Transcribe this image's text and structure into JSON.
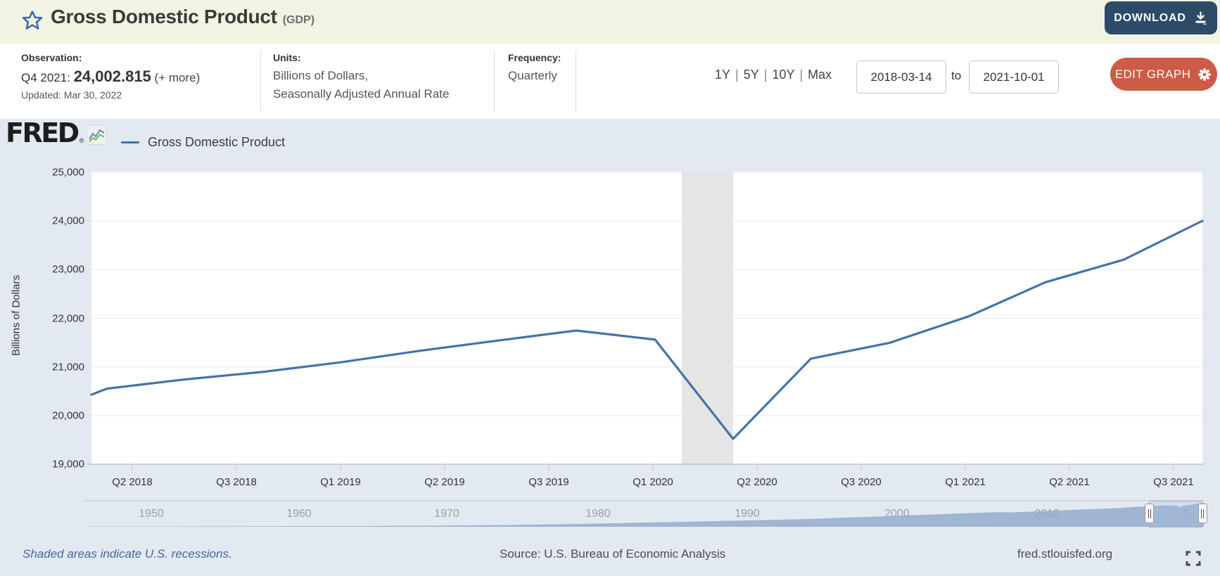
{
  "header": {
    "title": "Gross Domestic Product",
    "title_suffix": "(GDP)",
    "download_label": "DOWNLOAD"
  },
  "toolbar": {
    "observation": {
      "label": "Observation:",
      "period": "Q4 2021:",
      "value": "24,002.815",
      "more": "(+ more)",
      "updated": "Updated: Mar 30, 2022"
    },
    "units": {
      "label": "Units:",
      "line1": "Billions of Dollars,",
      "line2": "Seasonally Adjusted Annual Rate"
    },
    "frequency": {
      "label": "Frequency:",
      "value": "Quarterly"
    },
    "ranges": [
      "1Y",
      "5Y",
      "10Y",
      "Max"
    ],
    "range_separator": "|",
    "date_from": "2018-03-14",
    "to_label": "to",
    "date_to": "2021-10-01",
    "edit_graph_label": "EDIT GRAPH"
  },
  "legend": {
    "brand": "FRED",
    "brand_reg": "®",
    "series_label": "Gross Domestic Product"
  },
  "chart_data": {
    "type": "line",
    "title": "Gross Domestic Product",
    "ylabel": "Billions of Dollars",
    "ylim": [
      19000,
      25000
    ],
    "yticks": [
      19000,
      20000,
      21000,
      22000,
      23000,
      24000,
      25000
    ],
    "x_range": [
      "2018-03-14",
      "2021-10-01"
    ],
    "xtick_labels": [
      "Q2 2018",
      "Q3 2018",
      "Q1 2019",
      "Q2 2019",
      "Q3 2019",
      "Q1 2020",
      "Q2 2020",
      "Q3 2020",
      "Q1 2021",
      "Q2 2021",
      "Q3 2021"
    ],
    "grid": true,
    "legend_position": "top-left",
    "series": [
      {
        "name": "Gross Domestic Product",
        "color": "#4573a7",
        "points": [
          [
            "2018-03-14",
            20430
          ],
          [
            "2018-04-01",
            20552.7
          ],
          [
            "2018-07-01",
            20742.7
          ],
          [
            "2018-10-01",
            20897.8
          ],
          [
            "2019-01-01",
            21098.8
          ],
          [
            "2019-04-01",
            21329.9
          ],
          [
            "2019-07-01",
            21540.3
          ],
          [
            "2019-10-01",
            21747.4
          ],
          [
            "2020-01-01",
            21561.1
          ],
          [
            "2020-04-01",
            19520.1
          ],
          [
            "2020-07-01",
            21170.3
          ],
          [
            "2020-10-01",
            21494.7
          ],
          [
            "2021-01-01",
            22038.2
          ],
          [
            "2021-04-01",
            22741.0
          ],
          [
            "2021-07-01",
            23202.3
          ],
          [
            "2021-10-01",
            24002.815
          ]
        ]
      }
    ],
    "recession_bands": [
      {
        "from": "2020-02-01",
        "to": "2020-04-01"
      }
    ],
    "colors": {
      "plot_background": "#ffffff",
      "page_background": "#e3e9f1",
      "gridline": "#e8e8e8",
      "axis_line": "#b0b0b0",
      "recession_band": "#e5e5e5"
    }
  },
  "timeline": {
    "year_labels": [
      "1950",
      "1960",
      "1970",
      "1980",
      "1990",
      "2000",
      "2010",
      "2..."
    ],
    "selection": {
      "from": "2018-03-14",
      "to": "2021-10-01"
    },
    "area_color": "#8ea7cb",
    "line_color": "#4c77a9",
    "area_points": [
      [
        1947,
        243
      ],
      [
        1950,
        300
      ],
      [
        1955,
        426
      ],
      [
        1960,
        542
      ],
      [
        1965,
        743
      ],
      [
        1970,
        1073
      ],
      [
        1975,
        1684
      ],
      [
        1980,
        2857
      ],
      [
        1985,
        4339
      ],
      [
        1990,
        5963
      ],
      [
        1995,
        7639
      ],
      [
        2000,
        10251
      ],
      [
        2005,
        13039
      ],
      [
        2008,
        14710
      ],
      [
        2009,
        14448
      ],
      [
        2010,
        14992
      ],
      [
        2012,
        16254
      ],
      [
        2014,
        17521
      ],
      [
        2016,
        18695
      ],
      [
        2018,
        20533
      ],
      [
        2019,
        21380
      ],
      [
        2020.0,
        21481
      ],
      [
        2020.25,
        19520
      ],
      [
        2020.5,
        21170
      ],
      [
        2020.75,
        21495
      ],
      [
        2021,
        22038
      ],
      [
        2021.25,
        22741
      ],
      [
        2021.5,
        23202
      ],
      [
        2021.83,
        24003
      ]
    ]
  },
  "footer": {
    "recession_note": "Shaded areas indicate U.S. recessions.",
    "source": "Source: U.S. Bureau of Economic Analysis",
    "site": "fred.stlouisfed.org"
  },
  "icons": {
    "star": "star-outline",
    "download": "download-tray-arrow",
    "gear": "gear",
    "fullscreen": "fullscreen-corners",
    "fred_logo_chart": "mini-line-chart"
  },
  "accent_colors": {
    "header_background": "#f2f4e3",
    "download_button": "#2d4a68",
    "edit_graph_button": "#cd5b45",
    "series_line": "#4573a7",
    "recession_link": "#45689c"
  }
}
